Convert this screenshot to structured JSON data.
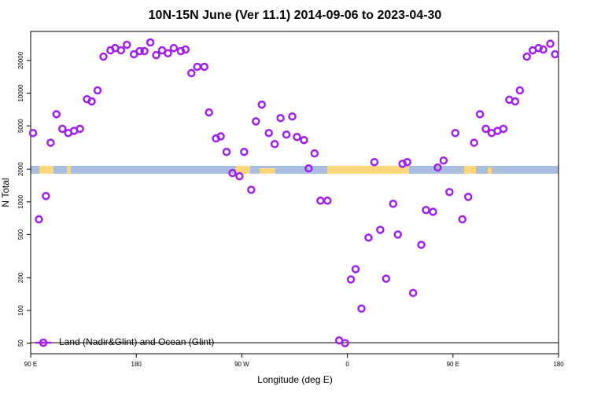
{
  "chart_data": {
    "type": "scatter",
    "title": "10N-15N June (Ver 11.1)   2014-09-06 to 2023-04-30",
    "x_label": "Longitude (deg E)",
    "y_label": "N Total",
    "xlim": [
      -270,
      180
    ],
    "xticks": [
      {
        "value": -270,
        "label": "90 E"
      },
      {
        "value": -180,
        "label": "180"
      },
      {
        "value": -90,
        "label": "90 W"
      },
      0,
      {
        "value": 90,
        "label": "90 E"
      },
      {
        "value": 180,
        "label": "180"
      }
    ],
    "ylim": [
      40,
      37000
    ],
    "ylog": true,
    "yticks": [
      50,
      100,
      200,
      500,
      1000,
      2000,
      5000,
      10000,
      20000
    ],
    "legend": "bottom-left",
    "series": [
      {
        "name": "Land (Nadir&Glint) and Ocean (Glint)",
        "color": "#a020f0",
        "x": [
          -268,
          -263,
          -257,
          -253,
          -248,
          -243,
          -238,
          -233,
          -228,
          -222,
          -218,
          -213,
          -208,
          -202,
          -198,
          -193,
          -188,
          -182,
          -177,
          -173,
          -168,
          -163,
          -158,
          -153,
          -148,
          -142,
          -138,
          -133,
          -128,
          -122,
          -118,
          -112,
          -108,
          -103,
          -98,
          -92,
          -88,
          -82,
          -78,
          -73,
          -67,
          -62,
          -57,
          -52,
          -47,
          -43,
          -37,
          -33,
          -28,
          -23,
          -17,
          -7,
          -2,
          3,
          7,
          12,
          18,
          23,
          28,
          33,
          39,
          43,
          47,
          51,
          56,
          63,
          67,
          73,
          77,
          82,
          87,
          92,
          98,
          103,
          108,
          113,
          118,
          123,
          128,
          133,
          138,
          143,
          147,
          153,
          158,
          163,
          167,
          173,
          177
        ],
        "values": [
          4300,
          690,
          1130,
          3500,
          6400,
          4700,
          4300,
          4500,
          4700,
          8800,
          8400,
          10600,
          21700,
          24800,
          26000,
          24800,
          27900,
          22800,
          24400,
          24400,
          29300,
          22400,
          24800,
          23300,
          26000,
          24400,
          25200,
          15300,
          17500,
          17500,
          6650,
          3830,
          4000,
          2880,
          1840,
          1720,
          2880,
          1290,
          5500,
          7850,
          4300,
          3400,
          5900,
          4160,
          6100,
          3950,
          3700,
          2030,
          2790,
          1025,
          1025,
          53,
          50,
          193,
          240,
          104,
          468,
          2320,
          552,
          196,
          960,
          500,
          2240,
          2320,
          145,
          402,
          840,
          810,
          2070,
          2400,
          1230,
          4300,
          690,
          1110,
          3500,
          6400,
          4700,
          4300,
          4500,
          4700,
          8700,
          8400,
          10600,
          21700,
          24800,
          26000,
          25200,
          28500,
          22800
        ]
      }
    ]
  }
}
